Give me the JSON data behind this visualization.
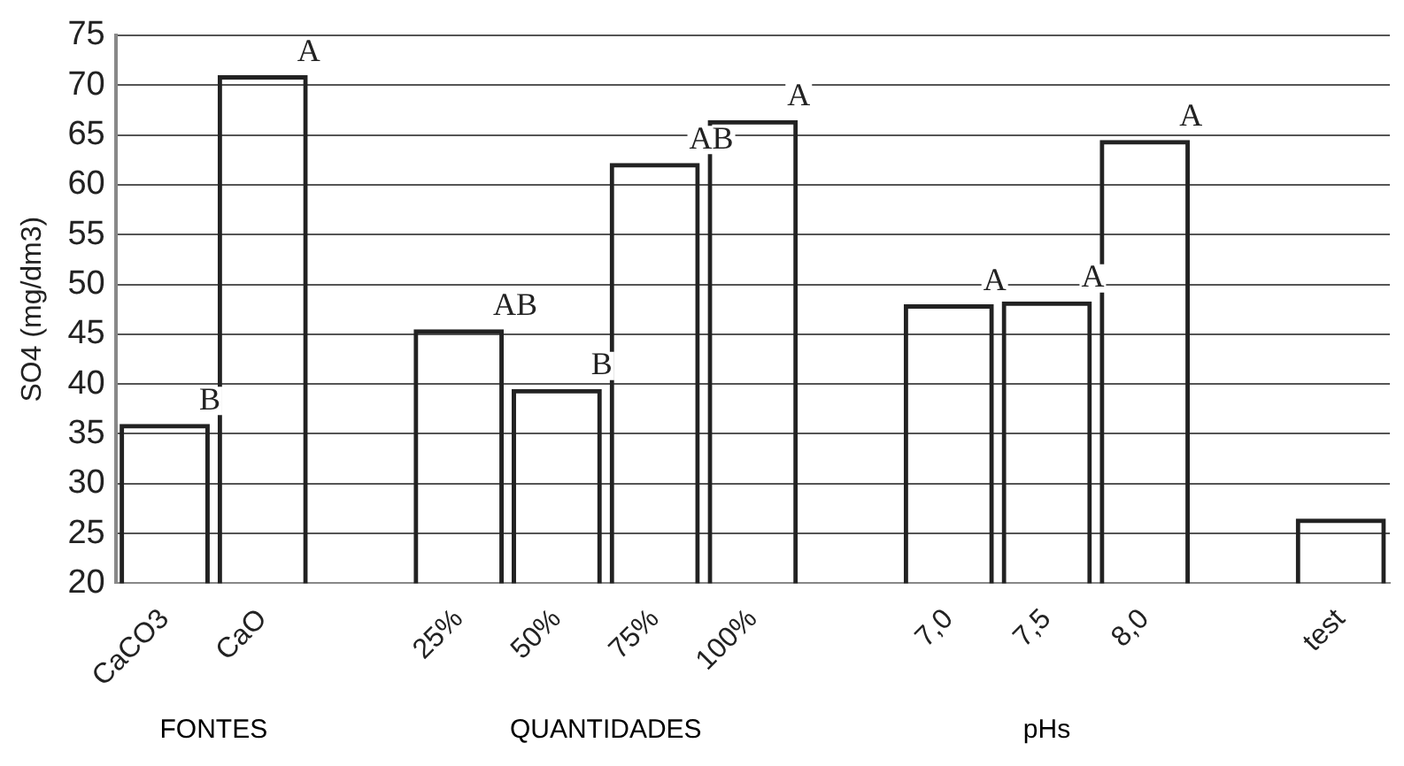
{
  "chart_data": {
    "type": "bar",
    "ylabel": "SO4 (mg/dm3)",
    "categories": [
      "CaCO3",
      "CaO",
      null,
      "25%",
      "50%",
      "75%",
      "100%",
      null,
      "7,0",
      "7,5",
      "8,0",
      null,
      "test"
    ],
    "values": [
      36,
      71,
      null,
      45.5,
      39.5,
      62.2,
      66.5,
      null,
      48,
      48.3,
      64.5,
      null,
      26.5
    ],
    "color": "#222222",
    "ylim": [
      20,
      75
    ],
    "yticks": [
      20,
      25,
      30,
      35,
      40,
      45,
      50,
      55,
      60,
      65,
      70,
      75
    ],
    "grid": "y",
    "legend": false,
    "annotations": [
      {
        "text": "B",
        "x": "CaCO3",
        "y": 36
      },
      {
        "text": "A",
        "x": "CaO",
        "y": 71
      },
      {
        "text": "AB",
        "x": "25%",
        "y": 45.5
      },
      {
        "text": "B",
        "x": "50%",
        "y": 39.5
      },
      {
        "text": "AB",
        "x": "75%",
        "y": 62.2
      },
      {
        "text": "A",
        "x": "100%",
        "y": 66.5
      },
      {
        "text": "A",
        "x": "7,0",
        "y": 48
      },
      {
        "text": "A",
        "x": "7,5",
        "y": 48.3
      },
      {
        "text": "A",
        "x": "8,0",
        "y": 64.5
      },
      "FONTES",
      "QUANTIDADES",
      "pHs"
    ]
  }
}
